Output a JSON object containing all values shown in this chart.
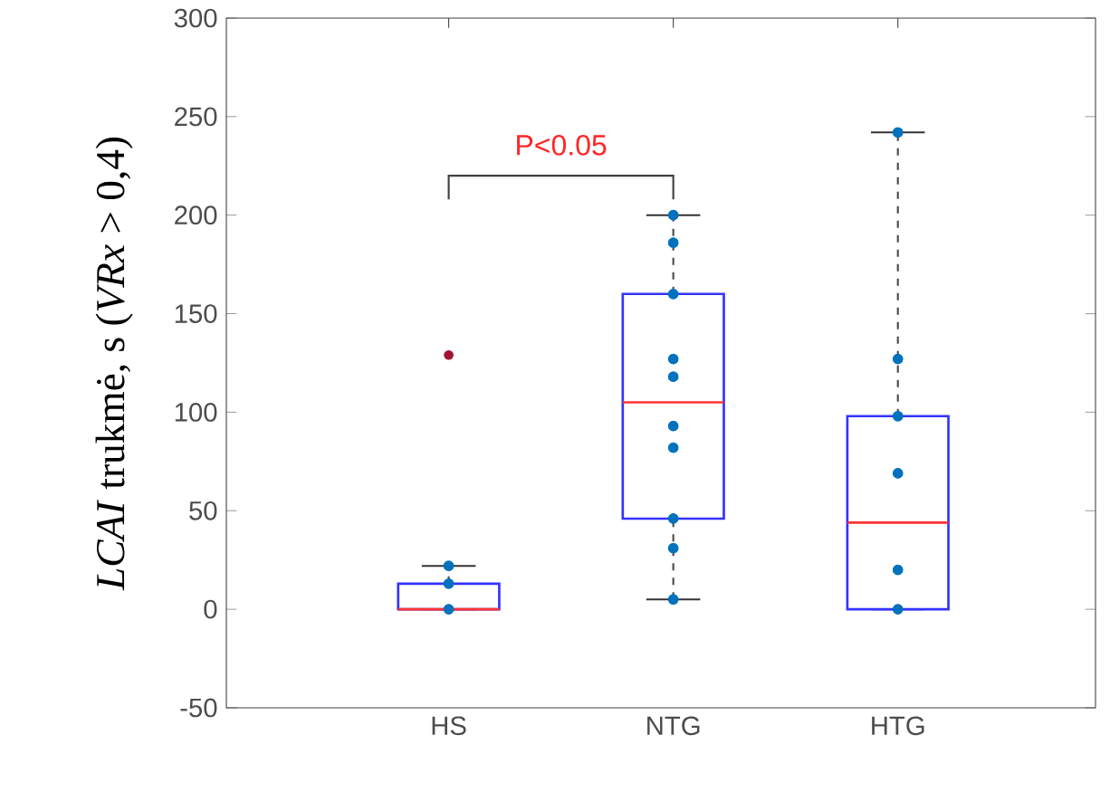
{
  "chart_data": {
    "type": "box",
    "ylabel": "*LCAI* trukmė, s (*VRx* > 0,4)",
    "categories": [
      "HS",
      "NTG",
      "HTG"
    ],
    "boxes": [
      {
        "low": 0,
        "q1": 0,
        "median": 0,
        "q3": 13,
        "high": 22,
        "outliers": [
          129
        ]
      },
      {
        "low": 5,
        "q1": 46,
        "median": 105,
        "q3": 160,
        "high": 200
      },
      {
        "low": 0,
        "q1": 0,
        "median": 44,
        "q3": 98,
        "high": 242
      }
    ],
    "series": [
      {
        "type": "scatter",
        "marker": "circle",
        "color": "#0072bd",
        "x": [
          "HS",
          "HS",
          "HS",
          "NTG",
          "NTG",
          "NTG",
          "NTG",
          "NTG",
          "NTG",
          "NTG",
          "NTG",
          "NTG",
          "NTG",
          "HTG",
          "HTG",
          "HTG",
          "HTG",
          "HTG",
          "HTG"
        ],
        "values": [
          0,
          13,
          22,
          200,
          186,
          160,
          127,
          118,
          93,
          82,
          46,
          31,
          5,
          242,
          127,
          98,
          69,
          20,
          0
        ]
      }
    ],
    "ylim": [
      -50,
      300
    ],
    "yticks": [
      -50,
      0,
      50,
      100,
      150,
      200,
      250,
      300
    ],
    "annotations": [
      "P<0.05"
    ],
    "grid": false
  }
}
